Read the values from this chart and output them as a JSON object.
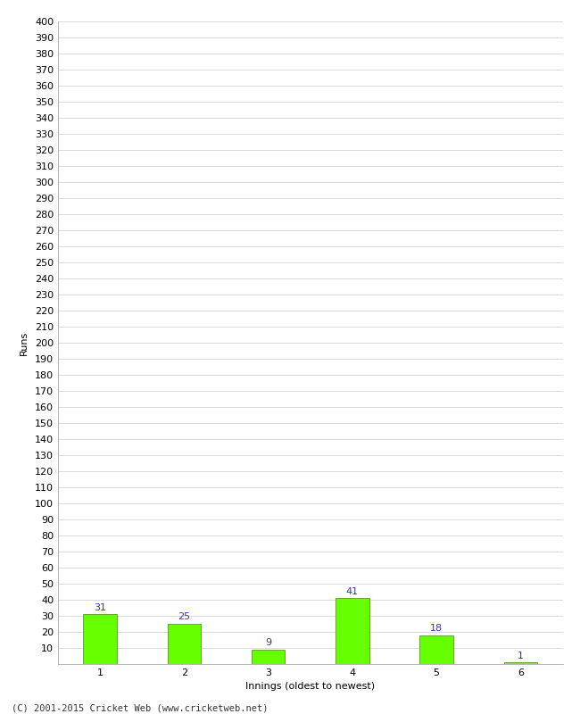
{
  "categories": [
    1,
    2,
    3,
    4,
    5,
    6
  ],
  "values": [
    31,
    25,
    9,
    41,
    18,
    1
  ],
  "bar_color": "#66ff00",
  "bar_edge_color": "#448800",
  "xlabel": "Innings (oldest to newest)",
  "ylabel": "Runs",
  "ylim": [
    0,
    400
  ],
  "ytick_step": 10,
  "label_color": "#3333cc",
  "label_fontsize": 8,
  "axis_fontsize": 8,
  "tick_fontsize": 8,
  "footer": "(C) 2001-2015 Cricket Web (www.cricketweb.net)",
  "background_color": "#ffffff",
  "grid_color": "#cccccc",
  "bar_width": 0.4
}
